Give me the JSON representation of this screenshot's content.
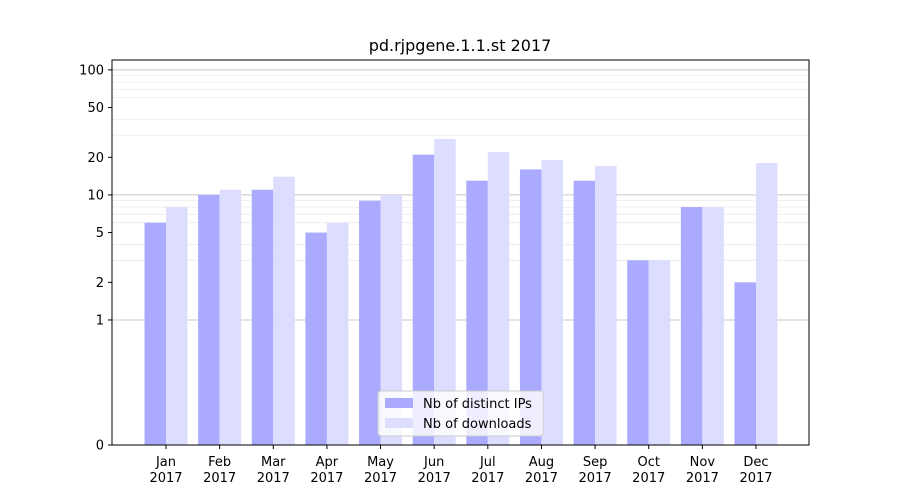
{
  "chart_data": {
    "type": "bar",
    "title": "pd.rjpgene.1.1.st 2017",
    "xlabel": "",
    "ylabel": "",
    "yscale": "symlog",
    "ylim": [
      0,
      120
    ],
    "yticks": [
      0,
      1,
      2,
      5,
      10,
      20,
      50,
      100
    ],
    "ytick_labels": [
      "0",
      "1",
      "2",
      "5",
      "10",
      "20",
      "50",
      "100"
    ],
    "grid": "y-major-and-minor",
    "legend_position": "lower-center",
    "categories": [
      "Jan\n2017",
      "Feb\n2017",
      "Mar\n2017",
      "Apr\n2017",
      "May\n2017",
      "Jun\n2017",
      "Jul\n2017",
      "Aug\n2017",
      "Sep\n2017",
      "Oct\n2017",
      "Nov\n2017",
      "Dec\n2017"
    ],
    "series": [
      {
        "name": "Nb of distinct IPs",
        "color": "#aaaaff",
        "values": [
          6,
          10,
          11,
          5,
          9,
          21,
          13,
          16,
          13,
          3,
          8,
          2
        ]
      },
      {
        "name": "Nb of downloads",
        "color": "#ddddff",
        "values": [
          8,
          11,
          14,
          6,
          10,
          28,
          22,
          19,
          17,
          3,
          8,
          18
        ]
      }
    ]
  }
}
